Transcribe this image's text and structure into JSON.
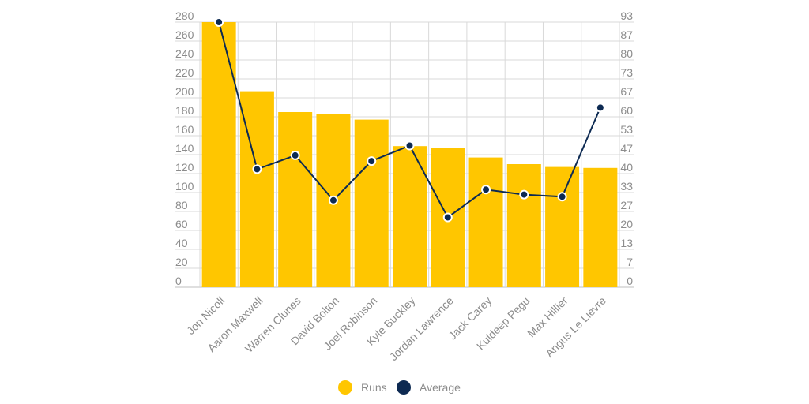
{
  "chart_data": {
    "type": "bar+line",
    "categories": [
      "Jon Nicoll",
      "Aaron Maxwell",
      "Warren Clunes",
      "David Bolton",
      "Joel Robinson",
      "Kyle Buckley",
      "Jordan Lawrence",
      "Jack Carey",
      "Kuldeep Pegu",
      "Max Hillier",
      "Angus Le Lievre"
    ],
    "series": [
      {
        "name": "Runs",
        "type": "bar",
        "axis": "left",
        "color": "#ffc600",
        "values": [
          280,
          207,
          185,
          183,
          177,
          149,
          147,
          137,
          130,
          127,
          126
        ]
      },
      {
        "name": "Average",
        "type": "line",
        "axis": "right",
        "color": "#0d2a52",
        "values": [
          93,
          41.4,
          46.25,
          30.5,
          44.25,
          49.67,
          24.5,
          34.25,
          32.5,
          31.75,
          63
        ]
      }
    ],
    "y_left": {
      "min": 0,
      "max": 280,
      "ticks": [
        "0",
        "20",
        "40",
        "60",
        "80",
        "100",
        "120",
        "140",
        "160",
        "180",
        "200",
        "220",
        "240",
        "260",
        "280"
      ]
    },
    "y_right": {
      "min": 0,
      "max": 93,
      "ticks": [
        "0",
        "7",
        "13",
        "20",
        "27",
        "33",
        "40",
        "47",
        "53",
        "60",
        "67",
        "73",
        "80",
        "87",
        "93"
      ]
    },
    "grid": true,
    "legend_position": "bottom-center"
  }
}
